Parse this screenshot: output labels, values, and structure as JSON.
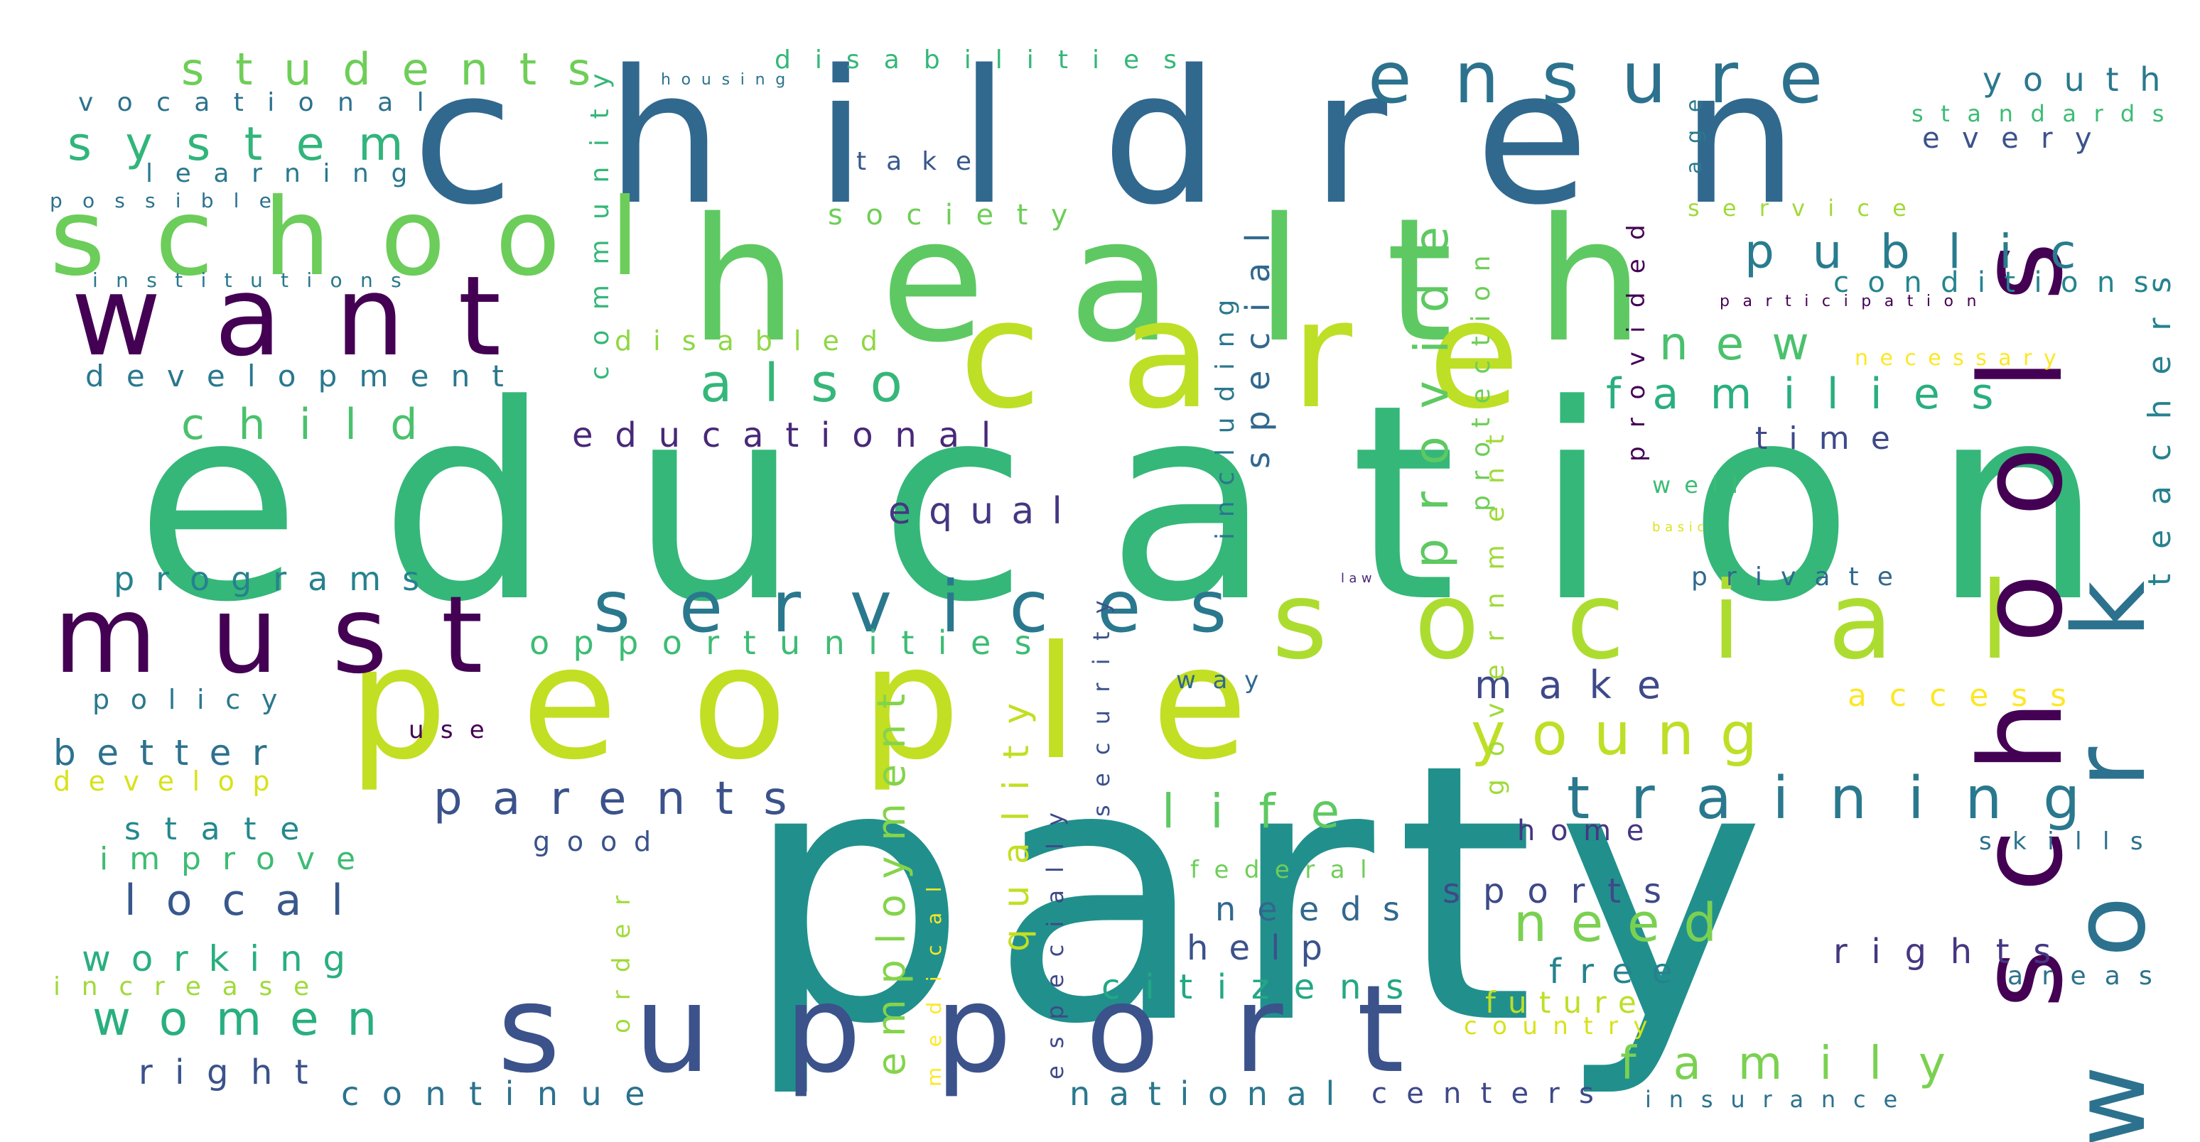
{
  "words": [
    {
      "text": "party",
      "color": "#21908c"
    },
    {
      "text": "education",
      "color": "#35b779"
    },
    {
      "text": "children",
      "color": "#31688e"
    },
    {
      "text": "health",
      "color": "#5ec962"
    },
    {
      "text": "people",
      "color": "#c2df23"
    },
    {
      "text": "care",
      "color": "#bddf26"
    },
    {
      "text": "support",
      "color": "#3b528b"
    },
    {
      "text": "social",
      "color": "#addc30"
    },
    {
      "text": "schools",
      "color": "#440154"
    },
    {
      "text": "work",
      "color": "#2c728e"
    },
    {
      "text": "school",
      "color": "#6ccd5a"
    },
    {
      "text": "want",
      "color": "#440154"
    },
    {
      "text": "must",
      "color": "#440154"
    },
    {
      "text": "services",
      "color": "#2a788e"
    },
    {
      "text": "ensure",
      "color": "#2c728e"
    },
    {
      "text": "training",
      "color": "#2a788e"
    },
    {
      "text": "young",
      "color": "#bddf26"
    },
    {
      "text": "students",
      "color": "#6ece58"
    },
    {
      "text": "system",
      "color": "#31b57b"
    },
    {
      "text": "also",
      "color": "#35b779"
    },
    {
      "text": "public",
      "color": "#287c8e"
    },
    {
      "text": "families",
      "color": "#29af7f"
    },
    {
      "text": "new",
      "color": "#4ac16d"
    },
    {
      "text": "provide",
      "color": "#5ec962"
    },
    {
      "text": "parents",
      "color": "#3b528b"
    },
    {
      "text": "child",
      "color": "#4ac16d"
    },
    {
      "text": "women",
      "color": "#29af7f"
    },
    {
      "text": "family",
      "color": "#7ad151"
    },
    {
      "text": "need",
      "color": "#7ad151"
    },
    {
      "text": "life",
      "color": "#5ec962"
    },
    {
      "text": "local",
      "color": "#38588c"
    },
    {
      "text": "employment",
      "color": "#84d44b"
    },
    {
      "text": "quality",
      "color": "#c2df23"
    },
    {
      "text": "make",
      "color": "#3e4989"
    },
    {
      "text": "equal",
      "color": "#453781"
    },
    {
      "text": "educational",
      "color": "#482878"
    },
    {
      "text": "opportunities",
      "color": "#3dbc74"
    },
    {
      "text": "programs",
      "color": "#26828e"
    },
    {
      "text": "development",
      "color": "#2a788e"
    },
    {
      "text": "youth",
      "color": "#2a788e"
    },
    {
      "text": "every",
      "color": "#3b528b"
    },
    {
      "text": "standards",
      "color": "#3dbc74"
    },
    {
      "text": "sports",
      "color": "#3e4989"
    },
    {
      "text": "needs",
      "color": "#31688e"
    },
    {
      "text": "help",
      "color": "#3b528b"
    },
    {
      "text": "citizens",
      "color": "#22a884"
    },
    {
      "text": "free",
      "color": "#26828e"
    },
    {
      "text": "future",
      "color": "#bddf26"
    },
    {
      "text": "rights",
      "color": "#453781"
    },
    {
      "text": "access",
      "color": "#fde725"
    },
    {
      "text": "teachers",
      "color": "#26828e"
    },
    {
      "text": "time",
      "color": "#3e4989"
    },
    {
      "text": "special",
      "color": "#31688e"
    },
    {
      "text": "including",
      "color": "#2a788e"
    },
    {
      "text": "protection",
      "color": "#6ece58"
    },
    {
      "text": "government",
      "color": "#a0da39"
    },
    {
      "text": "provided",
      "color": "#440154"
    },
    {
      "text": "community",
      "color": "#35b779"
    },
    {
      "text": "disabilities",
      "color": "#35b779"
    },
    {
      "text": "vocational",
      "color": "#2c728e"
    },
    {
      "text": "learning",
      "color": "#2a788e"
    },
    {
      "text": "possible",
      "color": "#2c728e"
    },
    {
      "text": "institutions",
      "color": "#2a788e"
    },
    {
      "text": "take",
      "color": "#38588c"
    },
    {
      "text": "society",
      "color": "#6ece58"
    },
    {
      "text": "disabled",
      "color": "#8fd744"
    },
    {
      "text": "service",
      "color": "#a0da39"
    },
    {
      "text": "conditions",
      "color": "#25848e"
    },
    {
      "text": "necessary",
      "color": "#fde725"
    },
    {
      "text": "well",
      "color": "#3dbc74"
    },
    {
      "text": "basic",
      "color": "#dde318"
    },
    {
      "text": "private",
      "color": "#31688e"
    },
    {
      "text": "law",
      "color": "#482878"
    },
    {
      "text": "policy",
      "color": "#2a788e"
    },
    {
      "text": "better",
      "color": "#2c728e"
    },
    {
      "text": "use",
      "color": "#440154"
    },
    {
      "text": "develop",
      "color": "#d8e219"
    },
    {
      "text": "state",
      "color": "#23898e"
    },
    {
      "text": "improve",
      "color": "#3dbc74"
    },
    {
      "text": "good",
      "color": "#3b528b"
    },
    {
      "text": "working",
      "color": "#29af7f"
    },
    {
      "text": "increase",
      "color": "#a0da39"
    },
    {
      "text": "right",
      "color": "#3b528b"
    },
    {
      "text": "continue",
      "color": "#2c728e"
    },
    {
      "text": "national",
      "color": "#2a788e"
    },
    {
      "text": "centers",
      "color": "#3e4989"
    },
    {
      "text": "insurance",
      "color": "#2c728e"
    },
    {
      "text": "home",
      "color": "#453781"
    },
    {
      "text": "skills",
      "color": "#2c728e"
    },
    {
      "text": "areas",
      "color": "#2c728e"
    },
    {
      "text": "federal",
      "color": "#6ece58"
    },
    {
      "text": "country",
      "color": "#d8e219"
    },
    {
      "text": "way",
      "color": "#31688e"
    },
    {
      "text": "security",
      "color": "#3b528b"
    },
    {
      "text": "especially",
      "color": "#3e4989"
    },
    {
      "text": "medical",
      "color": "#fde725"
    },
    {
      "text": "order",
      "color": "#a0da39"
    },
    {
      "text": "housing",
      "color": "#2c728e"
    },
    {
      "text": "age",
      "color": "#2a788e"
    },
    {
      "text": "participation",
      "color": "#440154"
    }
  ]
}
